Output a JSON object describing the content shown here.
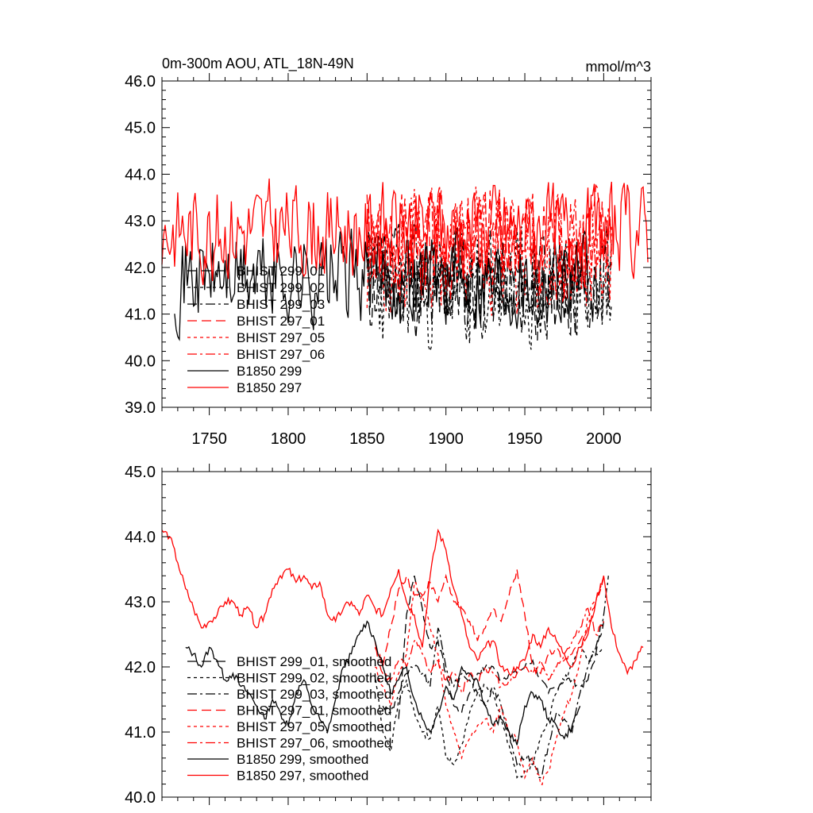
{
  "chart_data": [
    {
      "type": "line",
      "title_left": "0m-300m AOU, ATL_18N-49N",
      "title_right": "mmol/m^3",
      "xlabel": "",
      "ylabel": "",
      "xlim": [
        1720,
        2030
      ],
      "ylim": [
        39.0,
        46.0
      ],
      "x_ticks": [
        1750,
        1800,
        1850,
        1900,
        1950,
        2000
      ],
      "x_tick_labels": [
        "1750",
        "1800",
        "1850",
        "1900",
        "1950",
        "2000"
      ],
      "y_ticks": [
        39.0,
        40.0,
        41.0,
        42.0,
        43.0,
        44.0,
        45.0,
        46.0
      ],
      "y_tick_labels": [
        "39.0",
        "40.0",
        "41.0",
        "42.0",
        "43.0",
        "44.0",
        "45.0",
        "46.0"
      ],
      "grid": false,
      "legend_position": "bottom-left",
      "series": [
        {
          "name": "BHIST 299_01",
          "color": "#000000",
          "dash": "12,6",
          "x_range": [
            1850,
            2005
          ],
          "mean": 41.6,
          "amp": 1.0,
          "seed": 11
        },
        {
          "name": "BHIST 299_02",
          "color": "#000000",
          "dash": "4,4",
          "x_range": [
            1850,
            2005
          ],
          "mean": 41.5,
          "amp": 1.1,
          "seed": 23
        },
        {
          "name": "BHIST 299_03",
          "color": "#000000",
          "dash": "12,4,3,4",
          "x_range": [
            1850,
            2005
          ],
          "mean": 41.7,
          "amp": 1.0,
          "seed": 37
        },
        {
          "name": "BHIST 297_01",
          "color": "#ff0000",
          "dash": "12,6",
          "x_range": [
            1850,
            2005
          ],
          "mean": 42.6,
          "amp": 1.0,
          "seed": 41
        },
        {
          "name": "BHIST 297_05",
          "color": "#ff0000",
          "dash": "4,4",
          "x_range": [
            1850,
            2005
          ],
          "mean": 42.3,
          "amp": 1.2,
          "seed": 53
        },
        {
          "name": "BHIST 297_06",
          "color": "#ff0000",
          "dash": "12,4,3,4",
          "x_range": [
            1850,
            2005
          ],
          "mean": 42.5,
          "amp": 1.0,
          "seed": 67
        },
        {
          "name": "B1850 299",
          "color": "#000000",
          "dash": "",
          "x_range": [
            1728,
            1990
          ],
          "mean": 41.8,
          "amp": 0.9,
          "seed": 71
        },
        {
          "name": "B1850 297",
          "color": "#ff0000",
          "dash": "",
          "x_range": [
            1720,
            2028
          ],
          "mean": 42.8,
          "amp": 0.9,
          "seed": 83
        }
      ]
    },
    {
      "type": "line",
      "xlim": [
        1720,
        2030
      ],
      "ylim": [
        40.0,
        45.0
      ],
      "x_ticks": [
        1750,
        1800,
        1850,
        1900,
        1950,
        2000
      ],
      "y_ticks": [
        40.0,
        41.0,
        42.0,
        43.0,
        44.0,
        45.0
      ],
      "y_tick_labels": [
        "40.0",
        "41.0",
        "42.0",
        "43.0",
        "44.0",
        "45.0"
      ],
      "grid": false,
      "legend_position": "bottom-left",
      "series": [
        {
          "name": "BHIST 299_01, smoothed",
          "color": "#000000",
          "dash": "12,6",
          "x": [
            1870,
            1875,
            1880,
            1885,
            1890,
            1895,
            1900,
            1905,
            1910,
            1915,
            1920,
            1925,
            1930,
            1935,
            1940,
            1945,
            1950,
            1955,
            1960,
            1965,
            1970,
            1975,
            1980,
            1985,
            1990,
            1995,
            2000
          ],
          "y": [
            41.2,
            42.8,
            43.4,
            42.9,
            42.3,
            42.4,
            41.9,
            41.4,
            41.3,
            41.6,
            41.9,
            42.0,
            42.0,
            41.8,
            41.9,
            41.9,
            42.0,
            42.1,
            41.8,
            41.6,
            41.7,
            41.8,
            41.8,
            41.7,
            41.8,
            42.2,
            42.7
          ]
        },
        {
          "name": "BHIST 299_02, smoothed",
          "color": "#000000",
          "dash": "4,4",
          "x": [
            1855,
            1860,
            1865,
            1870,
            1875,
            1880,
            1885,
            1890,
            1895,
            1900,
            1905,
            1910,
            1915,
            1920,
            1925,
            1930,
            1935,
            1940,
            1945,
            1950,
            1955,
            1960,
            1965,
            1970,
            1975,
            1980,
            1985,
            1990,
            1995,
            2000
          ],
          "y": [
            41.9,
            41.0,
            40.7,
            41.5,
            41.8,
            41.3,
            41.0,
            40.9,
            41.4,
            40.6,
            40.5,
            40.8,
            41.3,
            41.6,
            41.7,
            41.6,
            41.2,
            40.8,
            40.3,
            40.4,
            40.5,
            40.9,
            41.2,
            41.6,
            41.8,
            42.0,
            42.3,
            42.1,
            42.2,
            42.3
          ]
        },
        {
          "name": "BHIST 299_03, smoothed",
          "color": "#000000",
          "dash": "12,4,3,4",
          "x": [
            1860,
            1865,
            1870,
            1875,
            1880,
            1885,
            1890,
            1895,
            1900,
            1905,
            1910,
            1915,
            1920,
            1925,
            1930,
            1935,
            1940,
            1945,
            1950,
            1955,
            1960,
            1965,
            1970,
            1975,
            1980,
            1985,
            1990,
            1995,
            2000,
            2003
          ],
          "y": [
            41.4,
            41.3,
            41.6,
            41.9,
            42.0,
            41.9,
            41.7,
            42.6,
            42.0,
            41.7,
            41.9,
            41.8,
            41.6,
            41.4,
            41.7,
            41.4,
            41.0,
            40.5,
            40.6,
            40.6,
            40.3,
            40.8,
            41.3,
            41.2,
            41.0,
            41.6,
            42.0,
            42.3,
            42.8,
            43.4
          ]
        },
        {
          "name": "BHIST 297_01, smoothed",
          "color": "#ff0000",
          "dash": "12,6",
          "x": [
            1855,
            1860,
            1865,
            1870,
            1875,
            1880,
            1885,
            1890,
            1895,
            1900,
            1905,
            1910,
            1915,
            1920,
            1925,
            1930,
            1935,
            1940,
            1945,
            1950,
            1955,
            1960,
            1965,
            1970,
            1975,
            1980,
            1985,
            1990,
            1995,
            2000
          ],
          "y": [
            42.4,
            42.0,
            42.6,
            43.2,
            43.4,
            43.1,
            43.1,
            43.3,
            43.0,
            43.4,
            43.0,
            42.9,
            42.7,
            42.4,
            42.6,
            42.9,
            42.7,
            43.1,
            43.5,
            42.8,
            42.0,
            41.9,
            42.2,
            42.3,
            42.1,
            42.2,
            42.4,
            42.6,
            43.0,
            43.4
          ]
        },
        {
          "name": "BHIST 297_05, smoothed",
          "color": "#ff0000",
          "dash": "4,4",
          "x": [
            1855,
            1860,
            1865,
            1870,
            1875,
            1880,
            1885,
            1890,
            1895,
            1900,
            1905,
            1910,
            1915,
            1920,
            1925,
            1930,
            1935,
            1940,
            1945,
            1950,
            1955,
            1960,
            1965,
            1970,
            1975,
            1980,
            1985,
            1990,
            1995,
            2000
          ],
          "y": [
            42.0,
            41.7,
            41.4,
            41.9,
            42.2,
            43.3,
            43.1,
            42.6,
            42.2,
            41.4,
            41.0,
            40.6,
            40.9,
            41.1,
            41.2,
            41.0,
            41.4,
            41.0,
            40.9,
            40.3,
            40.6,
            40.2,
            40.4,
            40.9,
            41.3,
            41.6,
            42.1,
            42.8,
            43.0,
            43.4
          ]
        },
        {
          "name": "BHIST 297_06, smoothed",
          "color": "#ff0000",
          "dash": "12,4,3,4",
          "x": [
            1855,
            1860,
            1865,
            1870,
            1875,
            1880,
            1885,
            1890,
            1895,
            1900,
            1905,
            1910,
            1915,
            1920,
            1925,
            1930,
            1935,
            1940,
            1945,
            1950,
            1955,
            1960,
            1965,
            1970,
            1975,
            1980,
            1985,
            1990,
            1995,
            2000
          ],
          "y": [
            42.3,
            41.9,
            41.8,
            42.1,
            42.0,
            42.4,
            42.2,
            41.9,
            42.1,
            41.8,
            41.9,
            41.6,
            41.9,
            41.8,
            42.0,
            41.9,
            41.7,
            41.8,
            41.9,
            42.0,
            41.9,
            42.1,
            41.8,
            42.0,
            42.2,
            42.4,
            42.6,
            42.9,
            42.5,
            42.7
          ]
        },
        {
          "name": "B1850 299, smoothed",
          "color": "#000000",
          "dash": "",
          "x": [
            1735,
            1740,
            1745,
            1750,
            1755,
            1760,
            1765,
            1770,
            1775,
            1780,
            1785,
            1790,
            1795,
            1800,
            1805,
            1810,
            1815,
            1820,
            1825,
            1830,
            1835,
            1840,
            1845,
            1850,
            1855,
            1860,
            1865,
            1870,
            1875,
            1880,
            1885,
            1890,
            1895,
            1900,
            1905,
            1910,
            1915,
            1920,
            1925,
            1930,
            1935,
            1940,
            1945,
            1950,
            1955,
            1960,
            1965,
            1970,
            1975,
            1980,
            1985
          ],
          "y": [
            42.3,
            42.2,
            42.0,
            42.3,
            42.1,
            41.8,
            41.9,
            41.7,
            41.6,
            41.4,
            41.2,
            41.5,
            41.3,
            41.1,
            41.6,
            41.8,
            41.4,
            41.2,
            41.0,
            41.5,
            42.0,
            42.2,
            42.5,
            42.7,
            42.4,
            42.0,
            41.6,
            41.8,
            42.0,
            41.5,
            41.2,
            41.0,
            41.3,
            41.7,
            41.5,
            42.0,
            41.9,
            41.8,
            41.4,
            41.1,
            41.2,
            41.0,
            40.8,
            41.4,
            41.6,
            41.5,
            41.2,
            41.1,
            40.9,
            41.1,
            41.4
          ]
        },
        {
          "name": "B1850 297, smoothed",
          "color": "#ff0000",
          "dash": "",
          "x": [
            1720,
            1725,
            1730,
            1735,
            1740,
            1745,
            1750,
            1755,
            1760,
            1765,
            1770,
            1775,
            1780,
            1785,
            1790,
            1795,
            1800,
            1805,
            1810,
            1815,
            1820,
            1825,
            1830,
            1835,
            1840,
            1845,
            1850,
            1855,
            1860,
            1865,
            1870,
            1875,
            1880,
            1885,
            1890,
            1895,
            1900,
            1905,
            1910,
            1915,
            1920,
            1925,
            1930,
            1935,
            1940,
            1945,
            1950,
            1955,
            1960,
            1965,
            1970,
            1975,
            1980,
            1985,
            1990,
            1995,
            2000,
            2005,
            2010,
            2015,
            2020,
            2025
          ],
          "y": [
            44.1,
            44.0,
            43.6,
            43.2,
            42.9,
            42.6,
            42.7,
            42.8,
            43.0,
            43.0,
            42.8,
            42.9,
            42.6,
            42.8,
            43.2,
            43.4,
            43.5,
            43.3,
            43.4,
            43.2,
            43.3,
            42.8,
            42.7,
            42.9,
            43.0,
            42.8,
            43.1,
            42.9,
            42.8,
            43.2,
            43.5,
            43.0,
            42.8,
            42.3,
            43.4,
            44.1,
            43.8,
            43.2,
            42.8,
            42.3,
            42.1,
            42.3,
            42.4,
            42.0,
            41.9,
            42.0,
            42.1,
            42.5,
            42.3,
            42.6,
            42.4,
            42.2,
            42.0,
            42.3,
            42.5,
            43.0,
            43.4,
            42.6,
            42.2,
            41.9,
            42.1,
            42.3
          ]
        }
      ]
    }
  ]
}
